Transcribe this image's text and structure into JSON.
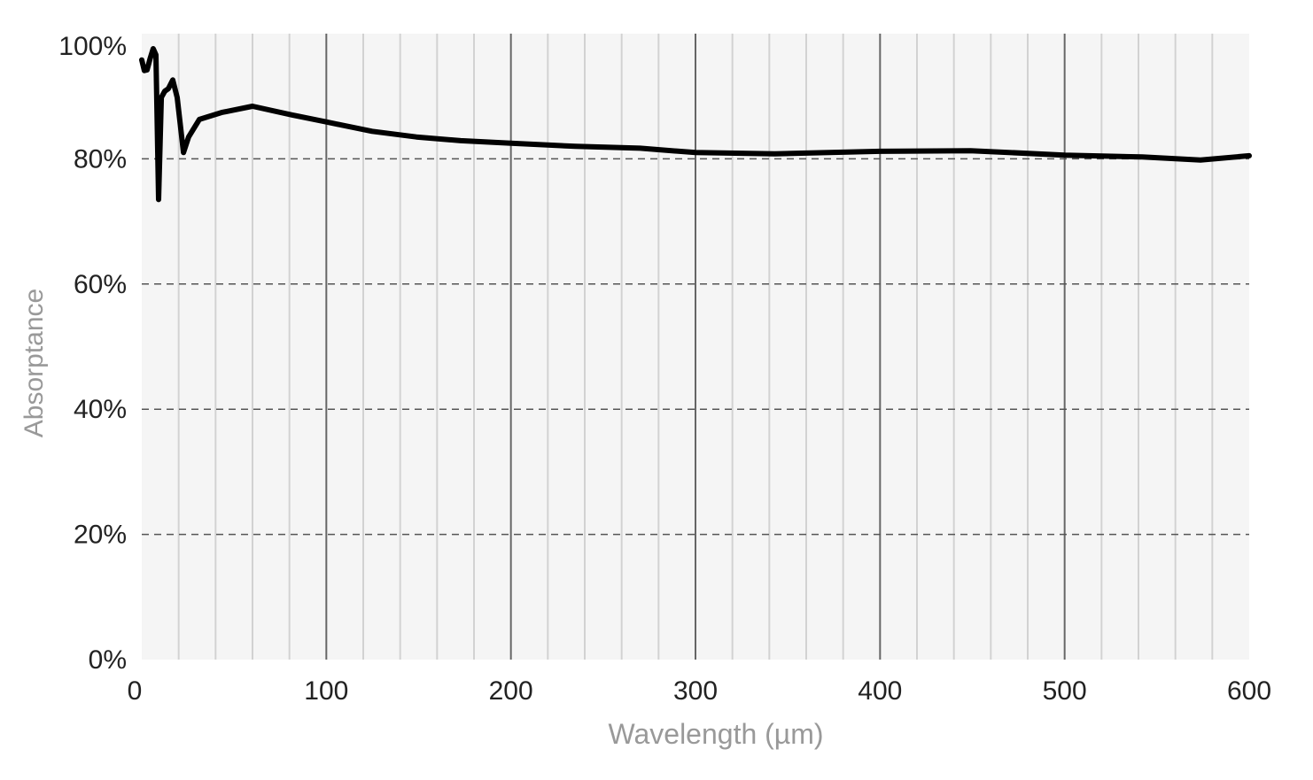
{
  "chart_data": {
    "type": "line",
    "title": "",
    "xlabel": "Wavelength (µm)",
    "ylabel": "Absorptance",
    "xlim": [
      0,
      600
    ],
    "ylim": [
      0,
      100
    ],
    "x_ticks": [
      0,
      100,
      200,
      300,
      400,
      500,
      600
    ],
    "x_tick_labels": [
      "0",
      "100",
      "200",
      "300",
      "400",
      "500",
      "600"
    ],
    "x_minor_step": 20,
    "y_ticks": [
      0,
      20,
      40,
      60,
      80,
      100
    ],
    "y_tick_labels": [
      "0%",
      "20%",
      "40%",
      "60%",
      "80%",
      "100%"
    ],
    "grid": {
      "x": "solid (major and minor)",
      "y": "dashed"
    },
    "plot_background": "#f5f5f5",
    "line_color": "#000000",
    "series": [
      {
        "x": [
          0,
          1.4,
          2.9,
          4.5,
          6.2,
          7.7,
          9.1,
          10.6,
          12.5,
          14.4,
          16.8,
          19.2,
          22.6,
          25.4,
          31.2,
          43.2,
          60,
          81.6,
          100,
          124.8,
          148.8,
          172.8,
          200,
          235,
          270,
          300,
          343,
          400,
          449,
          500,
          542,
          573.6,
          600
        ],
        "y": [
          95.8,
          94.1,
          94.2,
          96.0,
          97.6,
          96.6,
          73.5,
          89.8,
          90.8,
          91.2,
          92.6,
          89.8,
          81.0,
          83.5,
          86.3,
          87.4,
          88.4,
          87.0,
          85.9,
          84.4,
          83.5,
          82.9,
          82.5,
          82.0,
          81.7,
          81.0,
          80.8,
          81.2,
          81.3,
          80.6,
          80.3,
          79.8,
          80.5
        ]
      }
    ]
  }
}
